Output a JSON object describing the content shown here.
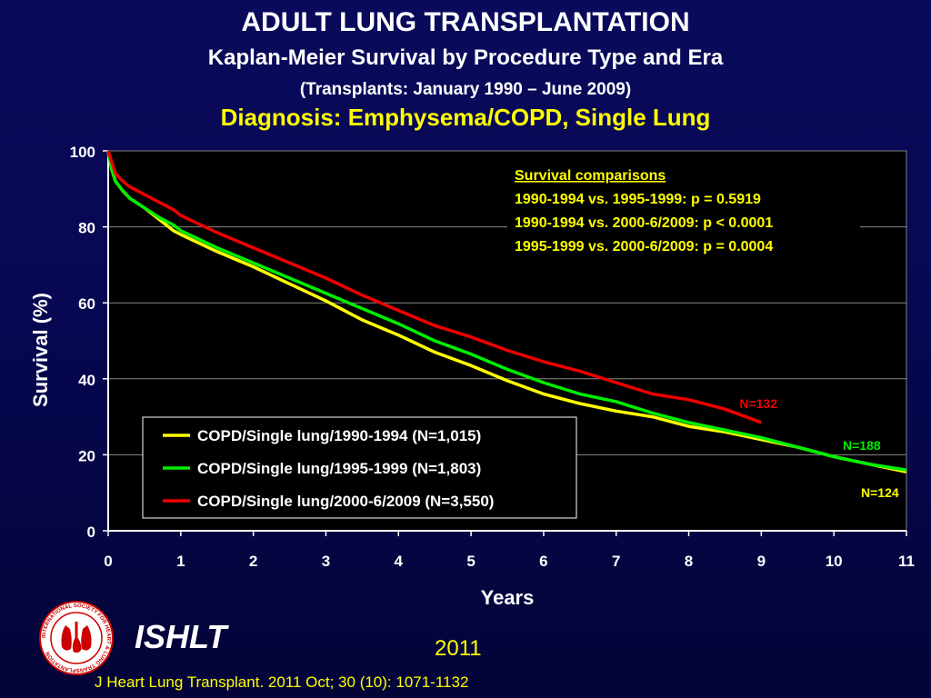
{
  "header": {
    "title": "ADULT LUNG TRANSPLANTATION",
    "subtitle": "Kaplan-Meier Survival by Procedure Type and Era",
    "date_range": "(Transplants: January 1990 – June 2009)",
    "diagnosis": "Diagnosis: Emphysema/COPD, Single Lung"
  },
  "chart_data": {
    "type": "line",
    "xlabel": "Years",
    "ylabel": "Survival (%)",
    "xlim": [
      0,
      11
    ],
    "ylim": [
      0,
      100
    ],
    "x_ticks": [
      "0",
      "1",
      "2",
      "3",
      "4",
      "5",
      "6",
      "7",
      "8",
      "9",
      "10",
      "11"
    ],
    "y_ticks": [
      "0",
      "20",
      "40",
      "60",
      "80",
      "100"
    ],
    "grid": "horizontal",
    "legend_position": "bottom-left",
    "series": [
      {
        "name": "COPD/Single lung/1990-1994 (N=1,015)",
        "color": "#ffff00",
        "end_label": "N=124",
        "x": [
          0,
          0.05,
          0.1,
          0.2,
          0.3,
          0.5,
          0.7,
          0.9,
          1,
          1.5,
          2,
          2.5,
          3,
          3.5,
          4,
          4.5,
          5,
          5.5,
          6,
          6.5,
          7,
          7.5,
          8,
          8.5,
          9,
          9.5,
          10,
          10.5,
          11
        ],
        "y": [
          100,
          95,
          92,
          89.5,
          87.5,
          85,
          82,
          79,
          78,
          73.5,
          69.5,
          65,
          60.5,
          55.5,
          51.5,
          47,
          43.5,
          39.5,
          36,
          33.5,
          31.5,
          30,
          27.5,
          26,
          24,
          22,
          19.5,
          17.5,
          15.5
        ]
      },
      {
        "name": "COPD/Single lung/1995-1999 (N=1,803)",
        "color": "#00ee00",
        "end_label": "N=188",
        "x": [
          0,
          0.05,
          0.1,
          0.2,
          0.3,
          0.5,
          0.7,
          0.9,
          1,
          1.5,
          2,
          2.5,
          3,
          3.5,
          4,
          4.5,
          5,
          5.5,
          6,
          6.5,
          7,
          7.5,
          8,
          8.5,
          9,
          9.5,
          10,
          10.5,
          11
        ],
        "y": [
          100,
          95,
          92,
          89.5,
          87.5,
          85,
          82.5,
          80.5,
          79,
          74.5,
          70.5,
          66.5,
          62.5,
          58.5,
          54.5,
          50,
          46.5,
          42.5,
          39,
          36,
          34,
          31,
          28.5,
          26.5,
          24.5,
          22,
          19.5,
          17.5,
          16
        ]
      },
      {
        "name": "COPD/Single lung/2000-6/2009 (N=3,550)",
        "color": "#ee0000",
        "end_label": "N=132",
        "x": [
          0,
          0.05,
          0.1,
          0.2,
          0.3,
          0.5,
          0.7,
          0.9,
          1,
          1.5,
          2,
          2.5,
          3,
          3.5,
          4,
          4.5,
          5,
          5.5,
          6,
          6.5,
          7,
          7.5,
          8,
          8.5,
          9
        ],
        "y": [
          100,
          97,
          94,
          92,
          90.5,
          88.5,
          86.5,
          84.5,
          83,
          78.5,
          74.5,
          70.5,
          66.5,
          62,
          58,
          54,
          51,
          47.5,
          44.5,
          42,
          39,
          36,
          34.5,
          32,
          28.5
        ]
      }
    ],
    "annotation": {
      "heading": "Survival comparisons",
      "lines": [
        "1990-1994 vs. 1995-1999:  p = 0.5919",
        "1990-1994 vs. 2000-6/2009: p < 0.0001",
        "1995-1999 vs. 2000-6/2009: p = 0.0004"
      ],
      "color": "#ffff00"
    }
  },
  "footer": {
    "brand": "ISHLT",
    "year": "2011",
    "citation": "J Heart Lung Transplant. 2011 Oct; 30 (10): 1071-1132",
    "logo_text": "INTERNATIONAL SOCIETY FOR HEART & LUNG TRANSPLANTATION"
  }
}
